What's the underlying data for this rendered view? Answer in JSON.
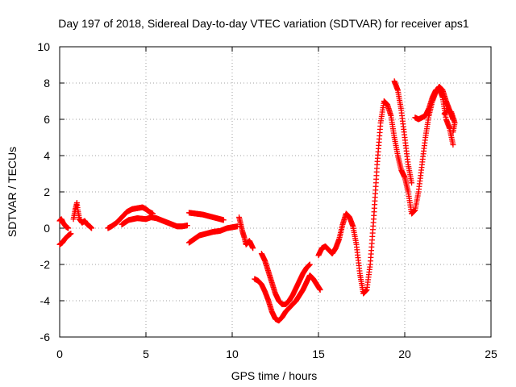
{
  "chart_data": {
    "type": "scatter",
    "title": "Day 197 of 2018, Sidereal Day-to-day VTEC variation (SDTVAR) for receiver aps1",
    "xlabel": "GPS time / hours",
    "ylabel": "SDTVAR / TECUs",
    "xlim": [
      0,
      25
    ],
    "ylim": [
      -6,
      10
    ],
    "xticks": [
      0,
      5,
      10,
      15,
      20,
      25
    ],
    "yticks": [
      -6,
      -4,
      -2,
      0,
      2,
      4,
      6,
      8,
      10
    ],
    "grid": true,
    "marker": "+",
    "series": [
      {
        "name": "aps1",
        "color": "#ff0000",
        "segments": [
          [
            [
              0.0,
              0.4
            ],
            [
              0.1,
              0.5
            ],
            [
              0.2,
              0.3
            ],
            [
              0.35,
              0.1
            ],
            [
              0.5,
              0.0
            ]
          ],
          [
            [
              0.0,
              -0.9
            ],
            [
              0.15,
              -0.8
            ],
            [
              0.3,
              -0.6
            ],
            [
              0.5,
              -0.4
            ],
            [
              0.65,
              -0.3
            ]
          ],
          [
            [
              0.8,
              0.5
            ],
            [
              0.9,
              1.0
            ],
            [
              1.0,
              1.4
            ],
            [
              1.05,
              1.0
            ],
            [
              1.15,
              0.5
            ],
            [
              1.3,
              0.3
            ],
            [
              1.45,
              0.4
            ],
            [
              1.6,
              0.2
            ],
            [
              1.75,
              0.1
            ],
            [
              1.85,
              0.0
            ]
          ],
          [
            [
              2.8,
              0.0
            ],
            [
              3.0,
              0.1
            ],
            [
              3.3,
              0.3
            ],
            [
              3.6,
              0.6
            ],
            [
              3.9,
              0.9
            ],
            [
              4.2,
              1.05
            ],
            [
              4.5,
              1.1
            ],
            [
              4.8,
              1.15
            ],
            [
              5.0,
              1.05
            ],
            [
              5.2,
              0.9
            ],
            [
              5.4,
              0.8
            ]
          ],
          [
            [
              3.6,
              0.2
            ],
            [
              4.0,
              0.45
            ],
            [
              4.5,
              0.55
            ],
            [
              5.0,
              0.5
            ],
            [
              5.3,
              0.6
            ],
            [
              5.6,
              0.55
            ],
            [
              6.0,
              0.4
            ],
            [
              6.4,
              0.25
            ],
            [
              6.8,
              0.1
            ],
            [
              7.1,
              0.1
            ],
            [
              7.4,
              0.15
            ]
          ],
          [
            [
              7.5,
              -0.8
            ],
            [
              7.8,
              -0.6
            ],
            [
              8.1,
              -0.4
            ],
            [
              8.5,
              -0.3
            ],
            [
              8.9,
              -0.2
            ],
            [
              9.3,
              -0.15
            ],
            [
              9.7,
              0.0
            ],
            [
              10.0,
              0.05
            ],
            [
              10.3,
              0.1
            ]
          ],
          [
            [
              7.5,
              0.85
            ],
            [
              7.9,
              0.8
            ],
            [
              8.3,
              0.75
            ],
            [
              8.7,
              0.65
            ],
            [
              9.1,
              0.55
            ],
            [
              9.5,
              0.45
            ]
          ],
          [
            [
              10.4,
              0.6
            ],
            [
              10.5,
              0.2
            ],
            [
              10.6,
              -0.2
            ],
            [
              10.7,
              -0.5
            ],
            [
              10.8,
              -0.9
            ],
            [
              11.0,
              -0.7
            ],
            [
              11.2,
              -1.1
            ]
          ],
          [
            [
              11.3,
              -2.8
            ],
            [
              11.5,
              -2.9
            ],
            [
              11.7,
              -3.1
            ],
            [
              11.9,
              -3.5
            ],
            [
              12.1,
              -4.0
            ],
            [
              12.3,
              -4.6
            ],
            [
              12.5,
              -5.0
            ],
            [
              12.7,
              -5.1
            ],
            [
              12.9,
              -4.9
            ],
            [
              13.1,
              -4.6
            ],
            [
              13.3,
              -4.4
            ],
            [
              13.5,
              -4.2
            ],
            [
              13.7,
              -4.0
            ],
            [
              13.9,
              -3.7
            ],
            [
              14.1,
              -3.4
            ],
            [
              14.3,
              -3.0
            ],
            [
              14.5,
              -2.6
            ],
            [
              14.7,
              -2.8
            ],
            [
              14.9,
              -3.1
            ],
            [
              15.1,
              -3.4
            ]
          ],
          [
            [
              11.7,
              -1.4
            ],
            [
              11.9,
              -1.8
            ],
            [
              12.1,
              -2.4
            ],
            [
              12.3,
              -3.0
            ],
            [
              12.5,
              -3.6
            ],
            [
              12.7,
              -4.0
            ],
            [
              12.9,
              -4.2
            ],
            [
              13.1,
              -4.2
            ],
            [
              13.3,
              -4.0
            ],
            [
              13.5,
              -3.7
            ],
            [
              13.7,
              -3.3
            ],
            [
              13.9,
              -2.9
            ],
            [
              14.1,
              -2.5
            ],
            [
              14.3,
              -2.2
            ],
            [
              14.5,
              -2.0
            ]
          ],
          [
            [
              15.0,
              -1.5
            ],
            [
              15.2,
              -1.1
            ],
            [
              15.4,
              -1.0
            ],
            [
              15.6,
              -1.2
            ],
            [
              15.8,
              -1.4
            ],
            [
              16.0,
              -1.1
            ],
            [
              16.2,
              -0.6
            ],
            [
              16.4,
              0.2
            ],
            [
              16.6,
              0.8
            ],
            [
              16.8,
              0.6
            ],
            [
              17.0,
              0.1
            ],
            [
              17.2,
              -0.9
            ],
            [
              17.4,
              -2.5
            ],
            [
              17.6,
              -3.6
            ],
            [
              17.8,
              -3.4
            ],
            [
              18.0,
              -2.0
            ],
            [
              18.2,
              0.5
            ],
            [
              18.4,
              3.5
            ],
            [
              18.6,
              5.8
            ],
            [
              18.8,
              7.0
            ],
            [
              19.0,
              6.8
            ],
            [
              19.2,
              6.2
            ],
            [
              19.4,
              5.0
            ],
            [
              19.6,
              4.0
            ],
            [
              19.8,
              3.2
            ],
            [
              20.0,
              2.8
            ],
            [
              20.2,
              2.0
            ],
            [
              20.4,
              0.8
            ],
            [
              20.6,
              1.0
            ],
            [
              20.8,
              2.0
            ],
            [
              21.0,
              3.5
            ],
            [
              21.2,
              5.0
            ],
            [
              21.4,
              6.2
            ],
            [
              21.6,
              7.0
            ],
            [
              21.8,
              7.5
            ],
            [
              22.0,
              7.8
            ],
            [
              22.2,
              7.6
            ],
            [
              22.4,
              7.0
            ],
            [
              22.6,
              6.5
            ],
            [
              22.8,
              6.0
            ]
          ],
          [
            [
              19.4,
              8.1
            ],
            [
              19.6,
              7.6
            ],
            [
              19.8,
              6.5
            ],
            [
              20.0,
              5.0
            ],
            [
              20.2,
              3.5
            ],
            [
              20.4,
              2.5
            ]
          ],
          [
            [
              20.6,
              6.1
            ],
            [
              20.8,
              6.0
            ],
            [
              21.0,
              6.1
            ],
            [
              21.2,
              6.2
            ],
            [
              21.4,
              6.6
            ],
            [
              21.6,
              7.2
            ],
            [
              21.8,
              7.6
            ],
            [
              22.0,
              7.7
            ],
            [
              22.2,
              7.2
            ],
            [
              22.4,
              6.0
            ],
            [
              22.6,
              5.5
            ],
            [
              22.8,
              4.6
            ]
          ],
          [
            [
              22.3,
              6.3
            ],
            [
              22.5,
              6.5
            ],
            [
              22.7,
              6.4
            ],
            [
              22.9,
              5.8
            ],
            [
              22.8,
              5.3
            ]
          ]
        ]
      }
    ]
  }
}
